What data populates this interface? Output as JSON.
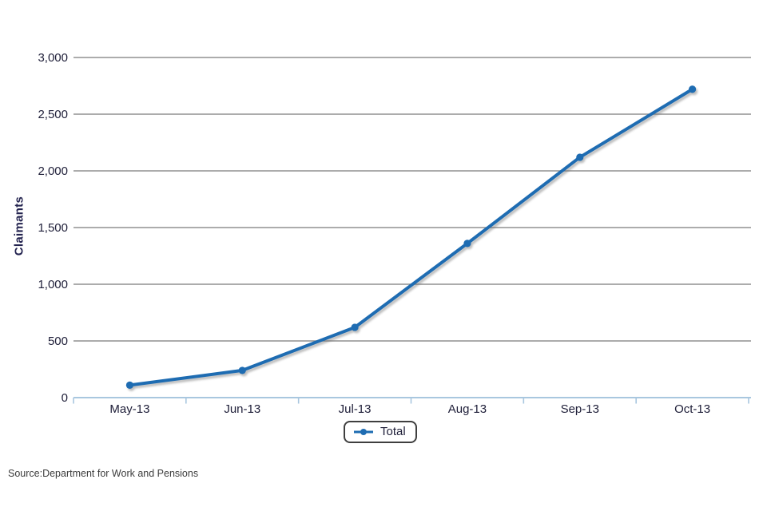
{
  "chart_data": {
    "type": "line",
    "title": "",
    "xlabel": "",
    "ylabel": "Claimants",
    "categories": [
      "May-13",
      "Jun-13",
      "Jul-13",
      "Aug-13",
      "Sep-13",
      "Oct-13"
    ],
    "series": [
      {
        "name": "Total",
        "values": [
          110,
          240,
          620,
          1360,
          2120,
          2720
        ]
      }
    ],
    "ylim": [
      0,
      3000
    ],
    "yticks": [
      0,
      500,
      1000,
      1500,
      2000,
      2500,
      3000
    ],
    "grid": "horizontal-gray",
    "legend_position": "bottom-center"
  },
  "legend": {
    "label": "Total"
  },
  "source": {
    "text": "Source:Department for Work and Pensions"
  },
  "colors": {
    "series_blue": "#1e6cb2",
    "gridline": "#909090",
    "axis_light_blue": "#a9c7df",
    "tick_text": "#20203a",
    "ylabel_text": "#23234f",
    "source_text": "#3c3c3c",
    "legend_border": "#3f3f3f",
    "background": "#ffffff"
  }
}
